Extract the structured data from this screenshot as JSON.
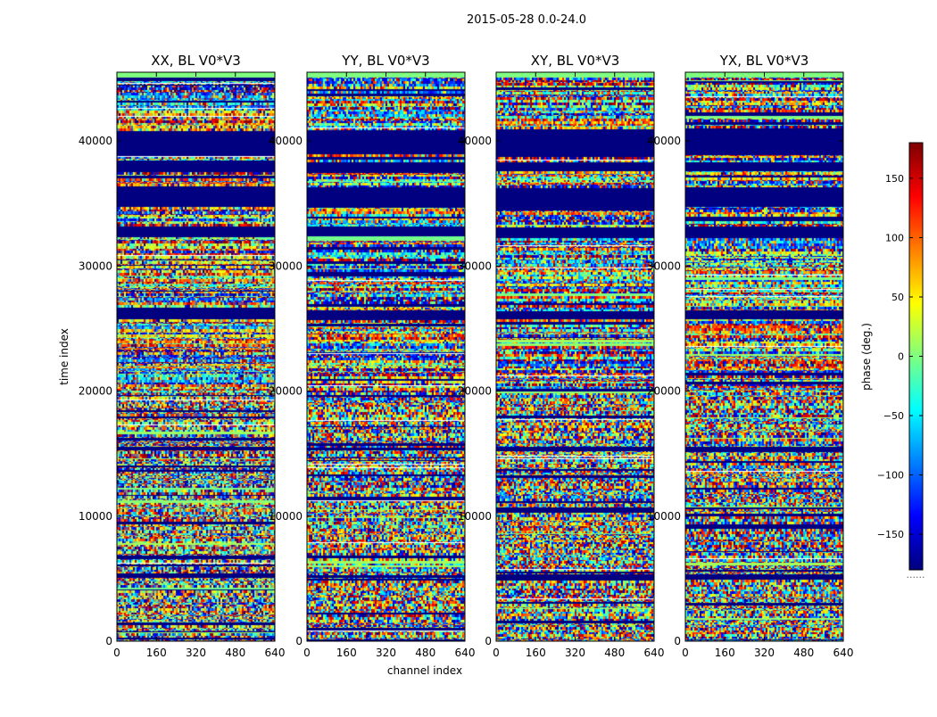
{
  "chart_data": {
    "type": "heatmap",
    "suptitle": "2015-05-28 0.0-24.0",
    "xlabel": "channel index",
    "ylabel": "time index",
    "xlim": [
      0,
      640
    ],
    "ylim": [
      0,
      45500
    ],
    "xticks": [
      "0",
      "160",
      "320",
      "480",
      "640"
    ],
    "yticks": [
      "0",
      "10000",
      "20000",
      "30000",
      "40000"
    ],
    "colorbar": {
      "label": "phase (deg.)",
      "range": [
        -180,
        180
      ],
      "ticks": [
        "150",
        "100",
        "50",
        "0",
        "−50",
        "−100",
        "−150"
      ],
      "tick_values": [
        150,
        100,
        50,
        0,
        -50,
        -100,
        -150
      ],
      "colormap": "jet"
    },
    "panels": [
      {
        "title": "XX, BL V0*V3",
        "seed": 11
      },
      {
        "title": "YY, BL V0*V3",
        "seed": 23
      },
      {
        "title": "XY, BL V0*V3",
        "seed": 37
      },
      {
        "title": "YX, BL V0*V3",
        "seed": 53
      }
    ],
    "flagged_time_ranges": [
      [
        34800,
        36400
      ],
      [
        32400,
        33200
      ],
      [
        25800,
        26500
      ],
      [
        37600,
        38400
      ],
      [
        39000,
        41000
      ],
      [
        15300,
        15600
      ],
      [
        5100,
        5400
      ]
    ],
    "cb_dots": "......"
  }
}
